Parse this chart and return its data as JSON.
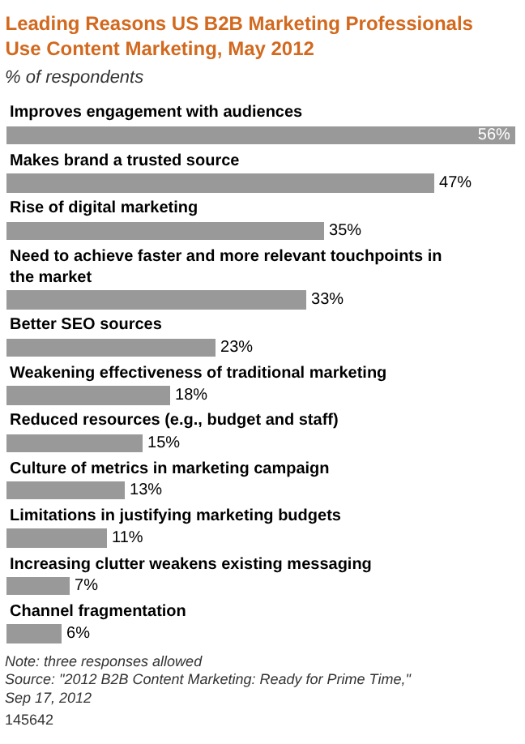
{
  "chart_data": {
    "type": "bar",
    "orientation": "horizontal",
    "title": "Leading Reasons US B2B Marketing Professionals Use Content Marketing, May 2012",
    "subtitle": "% of respondents",
    "categories": [
      "Improves engagement with audiences",
      "Makes brand a trusted source",
      "Rise of digital marketing",
      "Need to achieve faster and more relevant touchpoints in the market",
      "Better SEO sources",
      "Weakening effectiveness of traditional marketing",
      "Reduced resources (e.g., budget and staff)",
      "Culture of metrics in marketing campaign",
      "Limitations in justifying marketing budgets",
      "Increasing clutter weakens existing messaging",
      "Channel fragmentation"
    ],
    "values": [
      56,
      47,
      35,
      33,
      23,
      18,
      15,
      13,
      11,
      7,
      6
    ],
    "value_labels": [
      "56%",
      "47%",
      "35%",
      "33%",
      "23%",
      "18%",
      "15%",
      "13%",
      "11%",
      "7%",
      "6%"
    ],
    "color": "#999999",
    "annotations": [
      "Note: three responses allowed",
      "Source: \"2012 B2B Content Marketing: Ready for Prime Time,\" Sep 17, 2012",
      "145642"
    ]
  }
}
